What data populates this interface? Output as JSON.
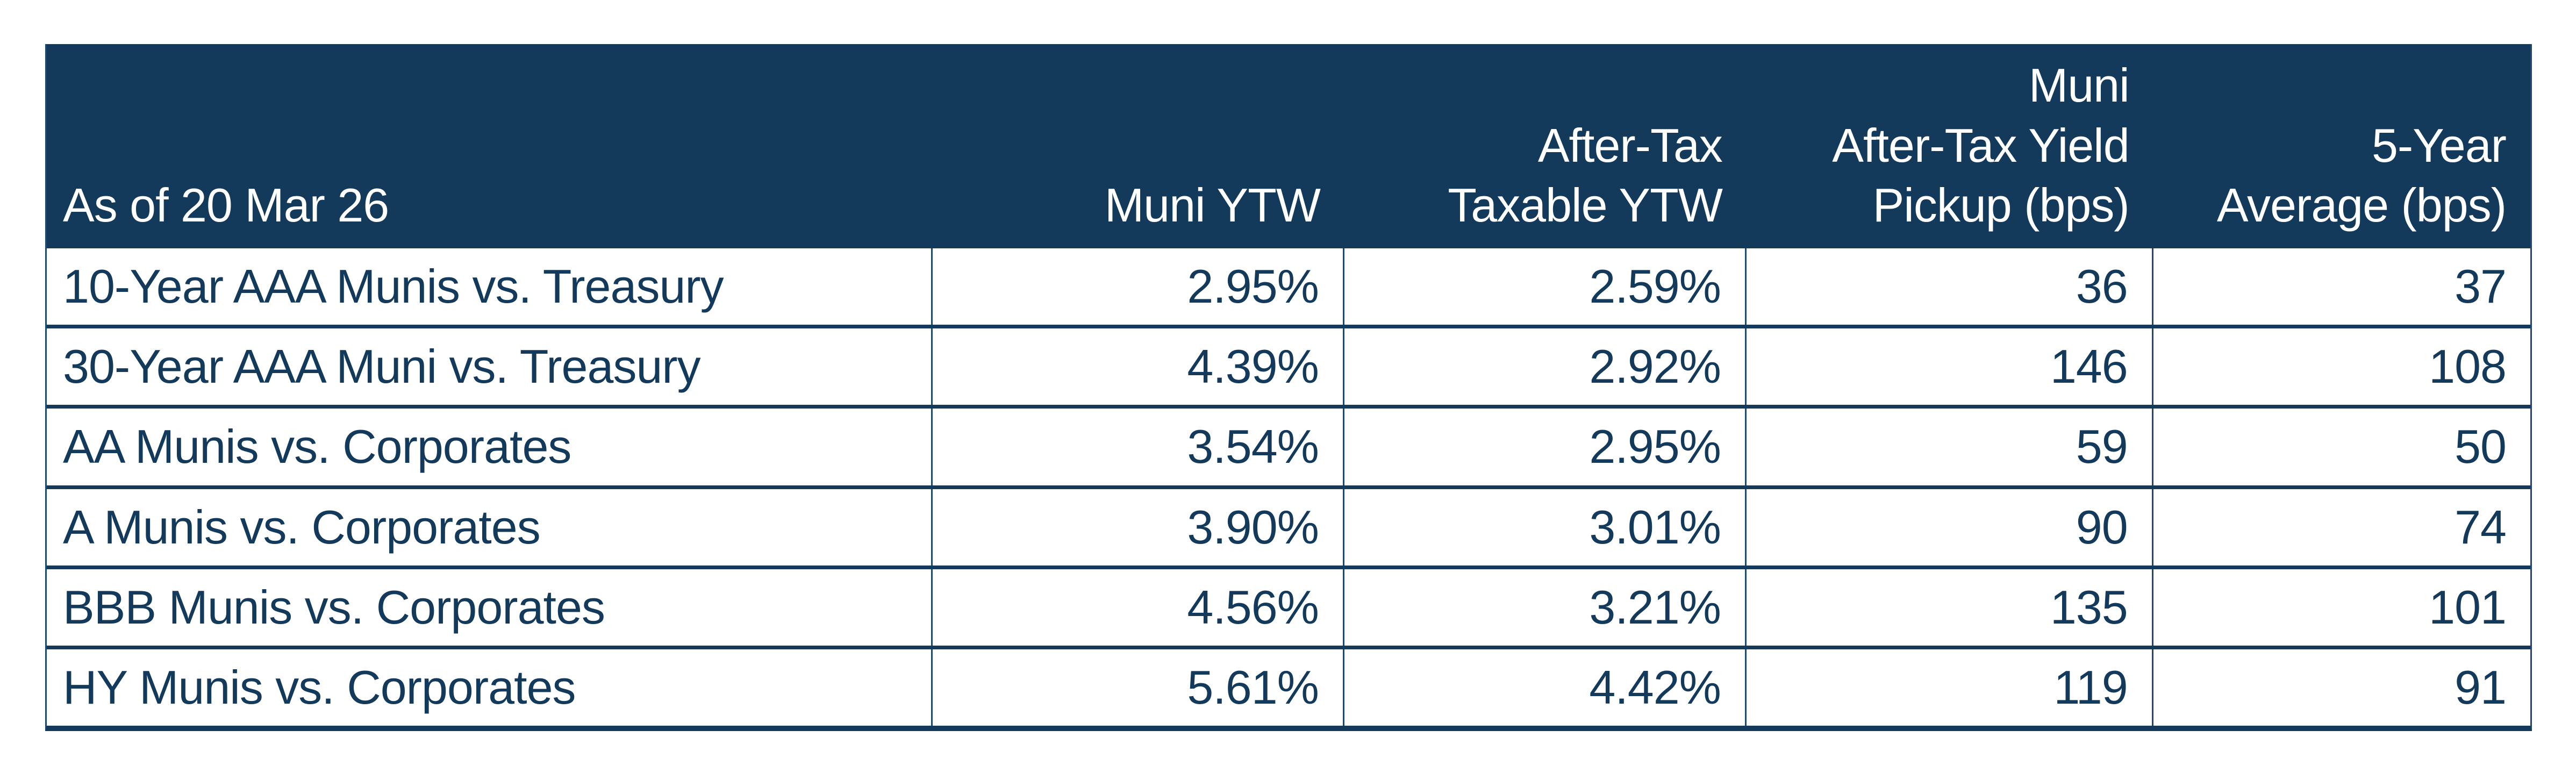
{
  "colors": {
    "navy": "#13395b",
    "thin_border": "#21486e",
    "header_text": "#ffffff",
    "background": "#ffffff"
  },
  "chart_data": {
    "type": "table",
    "title": "",
    "as_of_label": "As of 20 Mar 26",
    "columns": [
      "As of 20 Mar 26",
      "Muni YTW",
      "After-Tax\nTaxable YTW",
      "Muni\nAfter-Tax Yield\nPickup (bps)",
      "5-Year\nAverage (bps)"
    ],
    "rows": [
      [
        "10-Year AAA Munis vs. Treasury",
        "2.95%",
        "2.59%",
        "36",
        "37"
      ],
      [
        "30-Year AAA Muni vs. Treasury",
        "4.39%",
        "2.92%",
        "146",
        "108"
      ],
      [
        "AA Munis vs. Corporates",
        "3.54%",
        "2.95%",
        "59",
        "50"
      ],
      [
        "A Munis vs. Corporates",
        "3.90%",
        "3.01%",
        "90",
        "74"
      ],
      [
        "BBB Munis vs. Corporates",
        "4.56%",
        "3.21%",
        "135",
        "101"
      ],
      [
        "HY Munis vs. Corporates",
        "5.61%",
        "4.42%",
        "119",
        "91"
      ]
    ],
    "numeric_values": {
      "muni_ytw_pct": [
        2.95,
        4.39,
        3.54,
        3.9,
        4.56,
        5.61
      ],
      "after_tax_taxable_ytw_pct": [
        2.59,
        2.92,
        2.95,
        3.01,
        3.21,
        4.42
      ],
      "muni_after_tax_yield_pickup_bps": [
        36,
        146,
        59,
        90,
        135,
        119
      ],
      "five_year_average_bps": [
        37,
        108,
        50,
        74,
        101,
        91
      ]
    },
    "layout_hints": {
      "header_background": "#13395b",
      "header_text_color": "#ffffff",
      "body_text_color": "#13395b",
      "first_column_align": "left",
      "other_columns_align": "right",
      "grid": "thick horizontal navy separators, thin vertical navy separators"
    }
  }
}
